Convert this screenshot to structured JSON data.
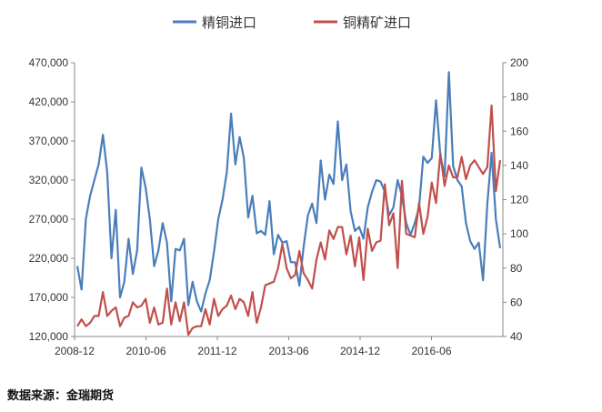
{
  "source_note": "数据来源：金瑞期货",
  "chart_data": {
    "type": "line",
    "legend_position": "top",
    "grid": false,
    "x_ticks": [
      "2008-12",
      "2010-06",
      "2011-12",
      "2013-06",
      "2014-12",
      "2016-06"
    ],
    "y_left": {
      "range": [
        120000,
        470000
      ],
      "ticks": [
        "120,000",
        "170,000",
        "220,000",
        "270,000",
        "320,000",
        "370,000",
        "420,000",
        "470,000"
      ]
    },
    "y_right": {
      "range": [
        40,
        200
      ],
      "ticks": [
        "40",
        "60",
        "80",
        "100",
        "120",
        "140",
        "160",
        "180",
        "200"
      ]
    },
    "series": [
      {
        "name": "精铜进口",
        "axis": "left",
        "color": "#4a7ebb",
        "values": [
          210000,
          180000,
          270000,
          300000,
          320000,
          340000,
          378000,
          330000,
          220000,
          282000,
          170000,
          190000,
          245000,
          200000,
          230000,
          336000,
          310000,
          270000,
          210000,
          230000,
          265000,
          240000,
          165000,
          232000,
          230000,
          245000,
          160000,
          190000,
          165000,
          152000,
          175000,
          192000,
          228000,
          270000,
          295000,
          330000,
          405000,
          340000,
          375000,
          348000,
          272000,
          300000,
          252000,
          255000,
          250000,
          293000,
          225000,
          250000,
          240000,
          242000,
          215000,
          215000,
          185000,
          235000,
          275000,
          290000,
          265000,
          345000,
          295000,
          327000,
          315000,
          395000,
          320000,
          340000,
          280000,
          255000,
          260000,
          245000,
          285000,
          305000,
          320000,
          318000,
          305000,
          275000,
          285000,
          320000,
          300000,
          265000,
          250000,
          265000,
          285000,
          350000,
          342000,
          348000,
          422000,
          352000,
          325000,
          458000,
          338000,
          320000,
          312000,
          265000,
          242000,
          232000,
          240000,
          192000,
          290000,
          355000,
          270000,
          233000
        ]
      },
      {
        "name": "铜精矿进口",
        "axis": "right",
        "color": "#c0504d",
        "values": [
          46,
          50,
          46,
          48,
          52,
          52,
          66,
          52,
          55,
          57,
          46,
          51,
          52,
          60,
          57,
          58,
          62,
          48,
          57,
          47,
          48,
          68,
          47,
          60,
          49,
          60,
          41,
          45,
          46,
          46,
          56,
          47,
          62,
          52,
          56,
          58,
          64,
          56,
          62,
          60,
          52,
          66,
          48,
          57,
          70,
          71,
          72,
          80,
          94,
          80,
          74,
          76,
          90,
          77,
          73,
          68,
          85,
          95,
          85,
          102,
          97,
          104,
          104,
          88,
          99,
          81,
          98,
          73,
          103,
          90,
          95,
          96,
          129,
          105,
          112,
          80,
          131,
          100,
          99,
          98,
          118,
          100,
          110,
          130,
          118,
          147,
          128,
          140,
          133,
          133,
          145,
          132,
          140,
          143,
          139,
          135,
          139,
          175,
          125,
          143
        ]
      }
    ]
  }
}
